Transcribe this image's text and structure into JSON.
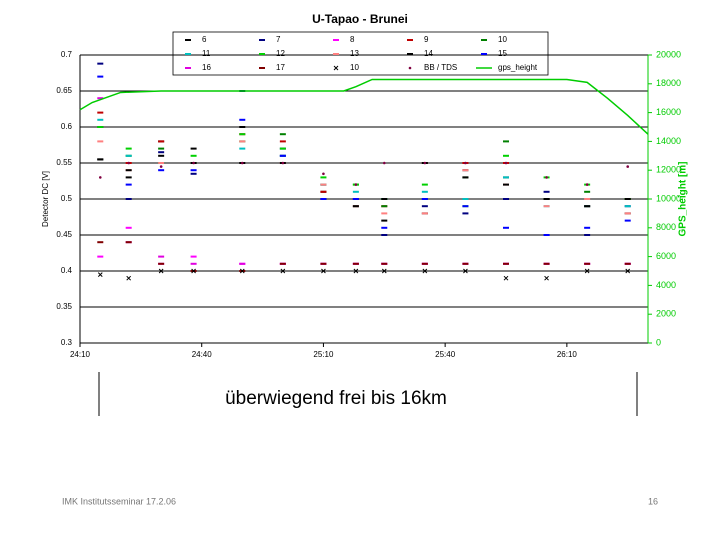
{
  "chart_data": {
    "type": "scatter",
    "title": "U-Tapao - Brunei",
    "y_label": "Detector DC [V]",
    "y2_label": "GPS_height [m]",
    "xlim": [
      1450,
      1590
    ],
    "xticks": [
      {
        "value": 1450,
        "label": "24:10"
      },
      {
        "value": 1480,
        "label": "24:40"
      },
      {
        "value": 1510,
        "label": "25:10"
      },
      {
        "value": 1540,
        "label": "25:40"
      },
      {
        "value": 1570,
        "label": "26:10"
      }
    ],
    "ylim": [
      0.3,
      0.7
    ],
    "yticks": [
      0.3,
      0.35,
      0.4,
      0.45,
      0.5,
      0.55,
      0.6,
      0.65,
      0.7
    ],
    "y2lim": [
      0,
      20000
    ],
    "y2ticks": [
      0,
      2000,
      4000,
      6000,
      8000,
      10000,
      12000,
      14000,
      16000,
      18000,
      20000
    ],
    "grid": true,
    "x": [
      1455,
      1462,
      1470,
      1478,
      1490,
      1500,
      1510,
      1518,
      1525,
      1535,
      1545,
      1555,
      1565,
      1575,
      1585
    ],
    "series": [
      {
        "name": "6",
        "color": "#000000",
        "marker": "dash",
        "values": [
          0.555,
          0.53,
          0.58,
          0.57,
          0.6,
          0.56,
          0.51,
          0.49,
          0.47,
          0.48,
          0.54,
          0.53,
          0.5,
          0.49,
          0.48
        ]
      },
      {
        "name": "7",
        "color": "#000080",
        "marker": "dash",
        "values": [
          0.688,
          0.5,
          0.565,
          0.535,
          0.65,
          0.57,
          0.52,
          0.5,
          0.45,
          0.49,
          0.48,
          0.5,
          0.51,
          0.45,
          0.49
        ]
      },
      {
        "name": "8",
        "color": "#ff00ff",
        "marker": "dash",
        "values": [
          0.42,
          0.46,
          0.41,
          0.42,
          0.41,
          0.41,
          0.41,
          0.41,
          0.41,
          0.41,
          0.41,
          0.41,
          0.41,
          0.41,
          0.41
        ]
      },
      {
        "name": "9",
        "color": "#c00000",
        "marker": "dash",
        "values": [
          0.62,
          0.55,
          0.58,
          0.55,
          0.59,
          0.58,
          0.51,
          0.5,
          0.49,
          0.55,
          0.55,
          0.55,
          0.5,
          0.49,
          0.5
        ]
      },
      {
        "name": "10",
        "color": "#008000",
        "marker": "dash",
        "values": [
          0.6,
          0.56,
          0.57,
          0.55,
          0.58,
          0.59,
          0.52,
          0.52,
          0.49,
          0.5,
          0.53,
          0.58,
          0.5,
          0.51,
          0.5
        ]
      },
      {
        "name": "11",
        "color": "#00c0c0",
        "marker": "dash",
        "values": [
          0.61,
          0.56,
          0.55,
          0.55,
          0.57,
          0.56,
          0.52,
          0.51,
          0.5,
          0.51,
          0.5,
          0.53,
          0.49,
          0.49,
          0.49
        ]
      },
      {
        "name": "12",
        "color": "#00d000",
        "marker": "dash",
        "values": [
          0.6,
          0.57,
          0.55,
          0.56,
          0.59,
          0.57,
          0.53,
          0.52,
          0.5,
          0.52,
          0.49,
          0.56,
          0.53,
          0.52,
          0.5
        ]
      },
      {
        "name": "13",
        "color": "#ff8080",
        "marker": "dash",
        "values": [
          0.58,
          0.54,
          0.55,
          0.55,
          0.58,
          0.55,
          0.52,
          0.49,
          0.48,
          0.48,
          0.54,
          0.52,
          0.49,
          0.5,
          0.48
        ]
      },
      {
        "name": "14",
        "color": "#000000",
        "marker": "dash",
        "values": [
          0.555,
          0.54,
          0.56,
          0.55,
          0.55,
          0.55,
          0.5,
          0.49,
          0.5,
          0.55,
          0.53,
          0.52,
          0.5,
          0.49,
          0.5
        ]
      },
      {
        "name": "15",
        "color": "#0000ff",
        "marker": "dash",
        "values": [
          0.67,
          0.52,
          0.54,
          0.54,
          0.61,
          0.56,
          0.5,
          0.5,
          0.46,
          0.5,
          0.49,
          0.46,
          0.45,
          0.46,
          0.47
        ]
      },
      {
        "name": "16",
        "color": "#e000e0",
        "marker": "dash",
        "values": [
          0.64,
          0.44,
          0.42,
          0.41,
          0.41,
          0.41,
          0.41,
          0.41,
          0.41,
          0.41,
          0.41,
          0.41,
          0.41,
          0.41,
          0.41
        ]
      },
      {
        "name": "17",
        "color": "#800000",
        "marker": "dash",
        "values": [
          0.44,
          0.44,
          0.41,
          0.4,
          0.4,
          0.41,
          0.41,
          0.41,
          0.41,
          0.41,
          0.41,
          0.41,
          0.41,
          0.41,
          0.41
        ]
      },
      {
        "name": "10",
        "color": "#000000",
        "marker": "x",
        "values": [
          0.395,
          0.39,
          0.4,
          0.4,
          0.4,
          0.4,
          0.4,
          0.4,
          0.4,
          0.4,
          0.4,
          0.39,
          0.39,
          0.4,
          0.4
        ]
      },
      {
        "name": "BB / TDS",
        "color": "#800040",
        "marker": "dot",
        "values": [
          0.53,
          0.55,
          0.545,
          0.55,
          0.55,
          0.55,
          0.535,
          0.52,
          0.55,
          0.55,
          0.55,
          0.55,
          0.53,
          0.52,
          0.545
        ]
      },
      {
        "name": "gps_height",
        "color": "#00cc00",
        "marker": "line",
        "axis": "y2",
        "x": [
          1450,
          1453,
          1460,
          1470,
          1480,
          1500,
          1515,
          1518,
          1522,
          1540,
          1560,
          1570,
          1575,
          1580,
          1585,
          1590
        ],
        "values": [
          16200,
          16700,
          17400,
          17500,
          17500,
          17500,
          17500,
          17800,
          18300,
          18300,
          18300,
          18300,
          18100,
          17000,
          15800,
          14500
        ]
      }
    ]
  },
  "slide": {
    "caption": "überwiegend frei bis 16km",
    "footer": "IMK Institutsseminar 17.2.06",
    "page_number": "16"
  }
}
